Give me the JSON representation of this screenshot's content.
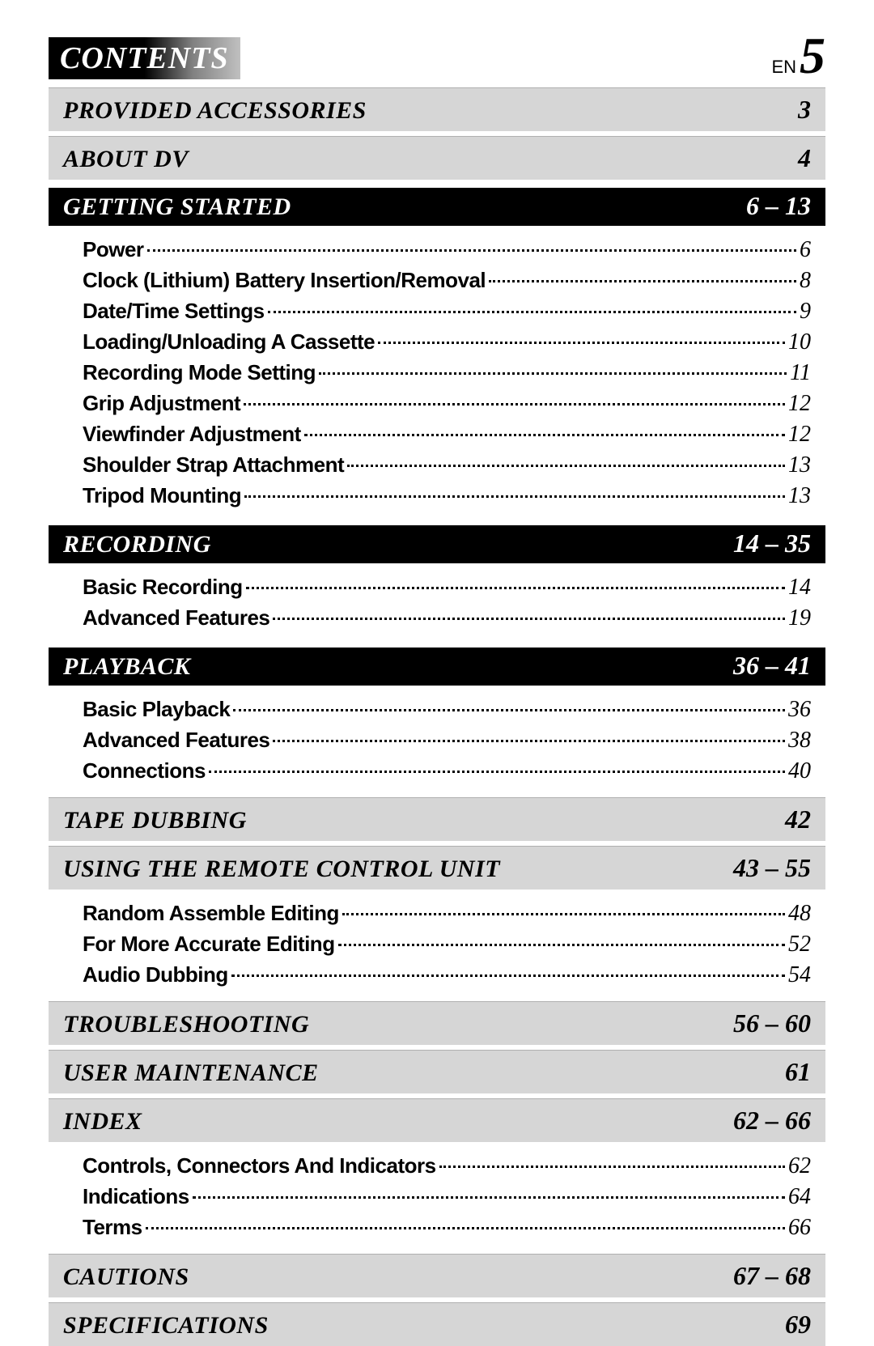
{
  "header": {
    "title": "CONTENTS",
    "lang_label": "EN",
    "page_number": "5"
  },
  "colors": {
    "gray_bg": "#d6d6d6",
    "black_bg": "#000000",
    "white": "#ffffff"
  },
  "sections": [
    {
      "type": "gray",
      "title": "PROVIDED ACCESSORIES",
      "page": "3",
      "items": []
    },
    {
      "type": "gray",
      "title": "ABOUT DV",
      "page": "4",
      "items": []
    },
    {
      "type": "black",
      "title": "GETTING STARTED",
      "page": "6 – 13",
      "items": [
        {
          "label": "Power",
          "page": "6"
        },
        {
          "label": "Clock (Lithium) Battery Insertion/Removal",
          "page": "8"
        },
        {
          "label": "Date/Time Settings",
          "page": "9"
        },
        {
          "label": "Loading/Unloading A Cassette",
          "page": "10"
        },
        {
          "label": "Recording Mode Setting",
          "page": "11"
        },
        {
          "label": "Grip Adjustment",
          "page": "12"
        },
        {
          "label": "Viewfinder Adjustment",
          "page": "12"
        },
        {
          "label": "Shoulder Strap Attachment",
          "page": "13"
        },
        {
          "label": "Tripod Mounting",
          "page": "13"
        }
      ]
    },
    {
      "type": "black",
      "title": "RECORDING",
      "page": "14 – 35",
      "items": [
        {
          "label": "Basic Recording",
          "page": "14"
        },
        {
          "label": "Advanced Features",
          "page": "19"
        }
      ]
    },
    {
      "type": "black",
      "title": "PLAYBACK",
      "page": "36 – 41",
      "items": [
        {
          "label": "Basic Playback",
          "page": "36"
        },
        {
          "label": "Advanced Features",
          "page": "38"
        },
        {
          "label": "Connections",
          "page": "40"
        }
      ]
    },
    {
      "type": "gray",
      "title": "TAPE DUBBING",
      "page": "42",
      "items": []
    },
    {
      "type": "gray",
      "title": "USING THE REMOTE CONTROL UNIT",
      "page": "43 – 55",
      "items": [
        {
          "label": "Random Assemble Editing",
          "page": "48"
        },
        {
          "label": "For More Accurate Editing",
          "page": "52"
        },
        {
          "label": "Audio Dubbing",
          "page": "54"
        }
      ]
    },
    {
      "type": "gray",
      "title": "TROUBLESHOOTING",
      "page": "56 – 60",
      "items": []
    },
    {
      "type": "gray",
      "title": "USER MAINTENANCE",
      "page": "61",
      "items": []
    },
    {
      "type": "gray",
      "title": "INDEX",
      "page": "62 – 66",
      "items": [
        {
          "label": "Controls, Connectors And Indicators",
          "page": "62"
        },
        {
          "label": "Indications",
          "page": "64"
        },
        {
          "label": "Terms",
          "page": "66"
        }
      ]
    },
    {
      "type": "gray",
      "title": "CAUTIONS",
      "page": "67 – 68",
      "items": []
    },
    {
      "type": "gray",
      "title": "SPECIFICATIONS",
      "page": "69",
      "items": []
    }
  ]
}
